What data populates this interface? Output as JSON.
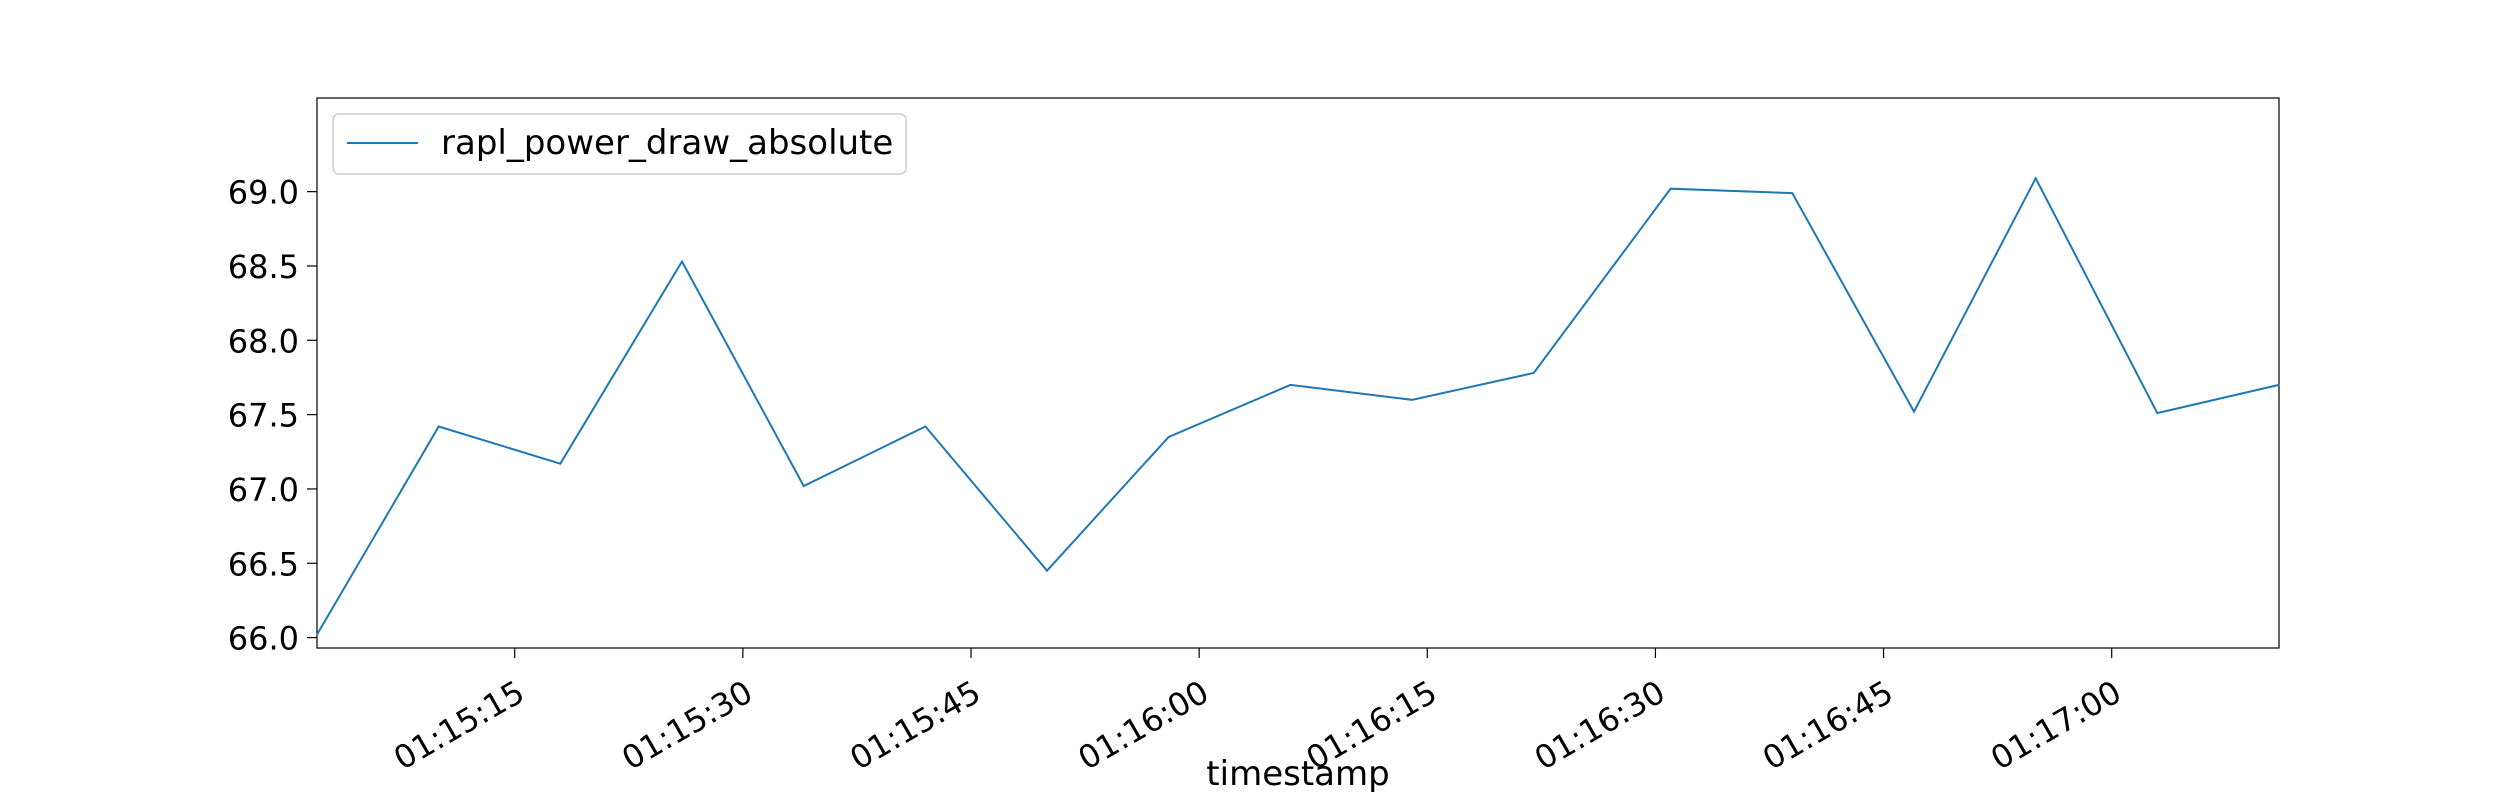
{
  "chart_data": {
    "type": "line",
    "title": "",
    "xlabel": "timestamp",
    "ylabel": "",
    "legend_position": "top-left",
    "grid": false,
    "x_ticks": [
      "01:15:15",
      "01:15:30",
      "01:15:45",
      "01:16:00",
      "01:16:15",
      "01:16:30",
      "01:16:45",
      "01:17:00"
    ],
    "y_ticks": [
      "66.0",
      "66.5",
      "67.0",
      "67.5",
      "68.0",
      "68.5",
      "69.0"
    ],
    "ylim": [
      65.93,
      69.63
    ],
    "xlim": [
      "01:15:02",
      "01:17:11"
    ],
    "series": [
      {
        "name": "rapl_power_draw_absolute",
        "color": "#1f77b4",
        "x": [
          "01:15:02",
          "01:15:10",
          "01:15:18",
          "01:15:26",
          "01:15:34",
          "01:15:42",
          "01:15:50",
          "01:15:58",
          "01:16:06",
          "01:16:14",
          "01:16:22",
          "01:16:31",
          "01:16:39",
          "01:16:47",
          "01:16:55",
          "01:17:03",
          "01:17:11"
        ],
        "values": [
          66.02,
          67.42,
          67.17,
          68.53,
          67.02,
          67.42,
          66.45,
          67.35,
          67.7,
          67.6,
          67.78,
          69.02,
          68.99,
          67.52,
          69.09,
          67.51,
          67.7
        ]
      }
    ]
  }
}
